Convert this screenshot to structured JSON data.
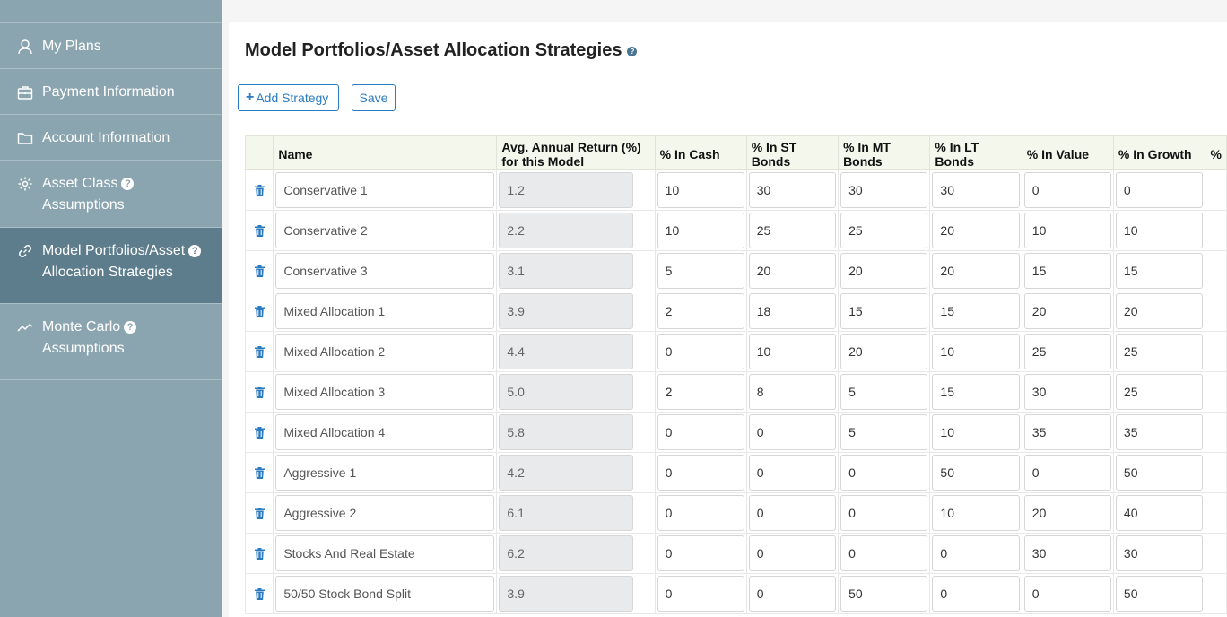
{
  "sidebar": {
    "items": [
      {
        "label": "My Plans",
        "icon": "user-icon",
        "help": false,
        "active": false
      },
      {
        "label": "Payment Information",
        "icon": "briefcase-icon",
        "help": false,
        "active": false
      },
      {
        "label": "Account Information",
        "icon": "folder-icon",
        "help": false,
        "active": false
      },
      {
        "label_line1": "Asset Class",
        "label_line2": "Assumptions",
        "icon": "gear-icon",
        "help": true,
        "active": false
      },
      {
        "label_line1": "Model Portfolios/Asset",
        "label_line2": "Allocation Strategies",
        "icon": "link-icon",
        "help": true,
        "active": true
      },
      {
        "label_line1": "Monte Carlo",
        "label_line2": "Assumptions",
        "icon": "line-chart-icon",
        "help": true,
        "active": false
      }
    ],
    "help_glyph": "?"
  },
  "main": {
    "title": "Model Portfolios/Asset Allocation Strategies",
    "help_glyph": "?",
    "add_strategy_label": "Add Strategy",
    "add_glyph": "+",
    "save_label": "Save"
  },
  "table": {
    "headers": {
      "name": "Name",
      "avg_line1": "Avg. Annual Return (%)",
      "avg_line2": "for this Model",
      "cash": "% In Cash",
      "st_line1": "% In ST",
      "st_line2": "Bonds",
      "mt_line1": "% In MT",
      "mt_line2": "Bonds",
      "lt": "% In LT Bonds",
      "value": "% In Value",
      "growth": "% In Growth",
      "next_partial": "%"
    },
    "rows": [
      {
        "name": "Conservative 1",
        "avg": "1.2",
        "cash": "10",
        "st": "30",
        "mt": "30",
        "lt": "30",
        "value": "0",
        "growth": "0"
      },
      {
        "name": "Conservative 2",
        "avg": "2.2",
        "cash": "10",
        "st": "25",
        "mt": "25",
        "lt": "20",
        "value": "10",
        "growth": "10"
      },
      {
        "name": "Conservative 3",
        "avg": "3.1",
        "cash": "5",
        "st": "20",
        "mt": "20",
        "lt": "20",
        "value": "15",
        "growth": "15"
      },
      {
        "name": "Mixed Allocation 1",
        "avg": "3.9",
        "cash": "2",
        "st": "18",
        "mt": "15",
        "lt": "15",
        "value": "20",
        "growth": "20"
      },
      {
        "name": "Mixed Allocation 2",
        "avg": "4.4",
        "cash": "0",
        "st": "10",
        "mt": "20",
        "lt": "10",
        "value": "25",
        "growth": "25"
      },
      {
        "name": "Mixed Allocation 3",
        "avg": "5.0",
        "cash": "2",
        "st": "8",
        "mt": "5",
        "lt": "15",
        "value": "30",
        "growth": "25"
      },
      {
        "name": "Mixed Allocation 4",
        "avg": "5.8",
        "cash": "0",
        "st": "0",
        "mt": "5",
        "lt": "10",
        "value": "35",
        "growth": "35"
      },
      {
        "name": "Aggressive 1",
        "avg": "4.2",
        "cash": "0",
        "st": "0",
        "mt": "0",
        "lt": "50",
        "value": "0",
        "growth": "50"
      },
      {
        "name": "Aggressive 2",
        "avg": "6.1",
        "cash": "0",
        "st": "0",
        "mt": "0",
        "lt": "10",
        "value": "20",
        "growth": "40"
      },
      {
        "name": "Stocks And Real Estate",
        "avg": "6.2",
        "cash": "0",
        "st": "0",
        "mt": "0",
        "lt": "0",
        "value": "30",
        "growth": "30"
      },
      {
        "name": "50/50 Stock Bond Split",
        "avg": "3.9",
        "cash": "0",
        "st": "0",
        "mt": "50",
        "lt": "0",
        "value": "0",
        "growth": "50"
      }
    ]
  },
  "colors": {
    "sidebar_bg": "#8ba5b0",
    "sidebar_active": "#5d7d8c",
    "accent": "#2a7bc2",
    "header_bg": "#f3f7ec"
  }
}
